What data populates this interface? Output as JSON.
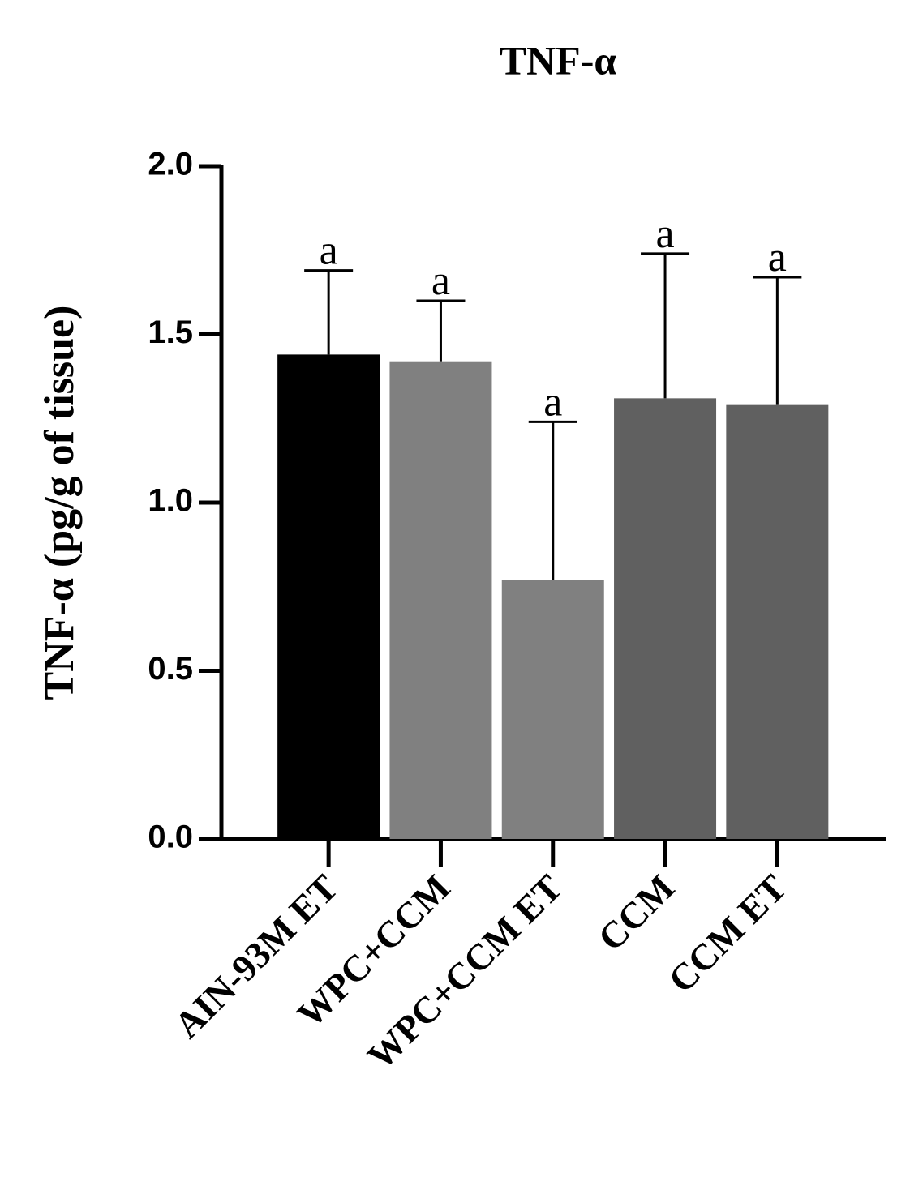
{
  "chart_data": {
    "type": "bar",
    "title": "TNF-α",
    "ylabel": "TNF-α (pg/g of tissue)",
    "categories": [
      "AIN-93M ET",
      "WPC+CCM",
      "WPC+CCM ET",
      "CCM",
      "CCM ET"
    ],
    "values": [
      1.44,
      1.42,
      0.77,
      1.31,
      1.29
    ],
    "errors": [
      0.25,
      0.18,
      0.47,
      0.43,
      0.38
    ],
    "annotations": [
      "a",
      "a",
      "a",
      "a",
      "a"
    ],
    "colors": [
      "#000000",
      "#808080",
      "#808080",
      "#606060",
      "#606060"
    ],
    "ylim": [
      0,
      2.0
    ],
    "yticks": [
      {
        "value": 0,
        "label": "0.0"
      },
      0.5,
      {
        "value": 1,
        "label": "1.0"
      },
      1.5,
      {
        "value": 2,
        "label": "2.0"
      }
    ]
  }
}
